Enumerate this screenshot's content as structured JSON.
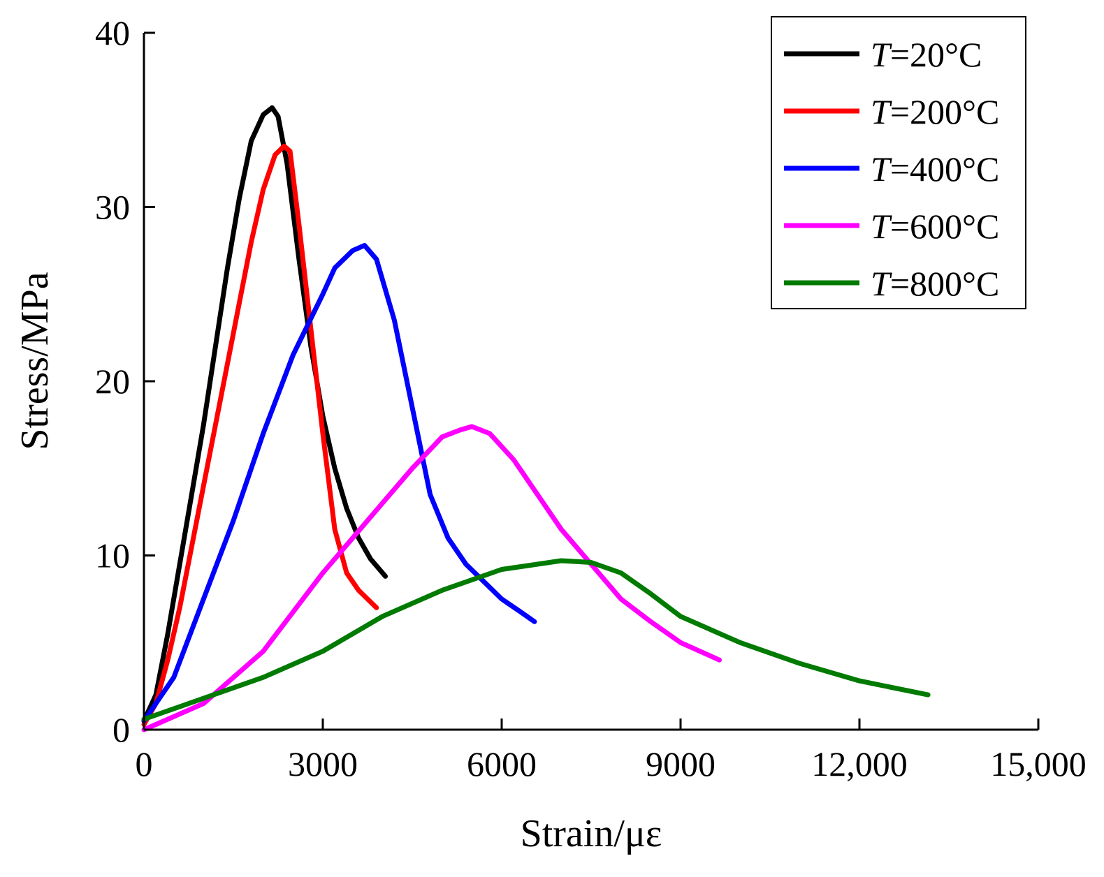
{
  "chart_data": {
    "type": "line",
    "title": "",
    "xlabel": "Strain/με",
    "ylabel": "Stress/MPa",
    "xlim": [
      0,
      15000
    ],
    "ylim": [
      0,
      40
    ],
    "x_ticks": [
      0,
      3000,
      6000,
      9000,
      12000,
      15000
    ],
    "x_tick_labels": [
      "0",
      "3000",
      "6000",
      "9000",
      "12,000",
      "15,000"
    ],
    "y_ticks": [
      0,
      10,
      20,
      30,
      40
    ],
    "y_tick_labels": [
      "0",
      "10",
      "20",
      "30",
      "40"
    ],
    "grid": false,
    "legend_position": "top-right",
    "legend_prefix": "T",
    "series": [
      {
        "name": "T=20°C",
        "legend_value": "=20°C",
        "color": "#000000",
        "x": [
          0,
          200,
          400,
          600,
          800,
          1000,
          1200,
          1400,
          1600,
          1800,
          2000,
          2150,
          2250,
          2400,
          2600,
          2800,
          3000,
          3200,
          3400,
          3600,
          3800,
          4050
        ],
        "y": [
          0.5,
          2.0,
          5.5,
          9.5,
          13.5,
          17.5,
          22.0,
          26.5,
          30.5,
          33.8,
          35.3,
          35.7,
          35.2,
          32.5,
          27.0,
          22.0,
          18.0,
          15.0,
          12.7,
          11.0,
          9.8,
          8.8
        ]
      },
      {
        "name": "T=200°C",
        "legend_value": "=200°C",
        "color": "#ff0000",
        "x": [
          0,
          200,
          400,
          600,
          800,
          1000,
          1200,
          1400,
          1600,
          1800,
          2000,
          2200,
          2350,
          2450,
          2600,
          2800,
          3000,
          3200,
          3400,
          3600,
          3900
        ],
        "y": [
          0.3,
          1.5,
          4.0,
          7.0,
          10.5,
          14.0,
          17.5,
          21.0,
          24.5,
          28.0,
          31.0,
          33.0,
          33.5,
          33.2,
          29.0,
          23.0,
          17.0,
          11.5,
          9.0,
          8.0,
          7.0
        ]
      },
      {
        "name": "T=400°C",
        "legend_value": "=400°C",
        "color": "#0000ff",
        "x": [
          0,
          500,
          1000,
          1500,
          2000,
          2500,
          3000,
          3200,
          3500,
          3700,
          3900,
          4200,
          4500,
          4800,
          5100,
          5400,
          5700,
          6000,
          6300,
          6550
        ],
        "y": [
          0.5,
          3.0,
          7.5,
          12.0,
          17.0,
          21.5,
          25.0,
          26.5,
          27.5,
          27.8,
          27.0,
          23.5,
          18.5,
          13.5,
          11.0,
          9.5,
          8.5,
          7.5,
          6.8,
          6.2
        ]
      },
      {
        "name": "T=600°C",
        "legend_value": "=600°C",
        "color": "#ff00ff",
        "x": [
          0,
          1000,
          2000,
          3000,
          4000,
          4500,
          5000,
          5300,
          5500,
          5800,
          6200,
          6600,
          7000,
          7500,
          8000,
          8500,
          9000,
          9650
        ],
        "y": [
          0,
          1.5,
          4.5,
          9.0,
          13.0,
          15.0,
          16.8,
          17.2,
          17.4,
          17.0,
          15.5,
          13.5,
          11.5,
          9.5,
          7.5,
          6.2,
          5.0,
          4.0
        ]
      },
      {
        "name": "T=800°C",
        "legend_value": "=800°C",
        "color": "#007a00",
        "x": [
          0,
          1000,
          2000,
          3000,
          4000,
          5000,
          6000,
          7000,
          7500,
          8000,
          8500,
          9000,
          10000,
          11000,
          12000,
          13150
        ],
        "y": [
          0.6,
          1.8,
          3.0,
          4.5,
          6.5,
          8.0,
          9.2,
          9.7,
          9.6,
          9.0,
          7.8,
          6.5,
          5.0,
          3.8,
          2.8,
          2.0
        ]
      }
    ]
  }
}
